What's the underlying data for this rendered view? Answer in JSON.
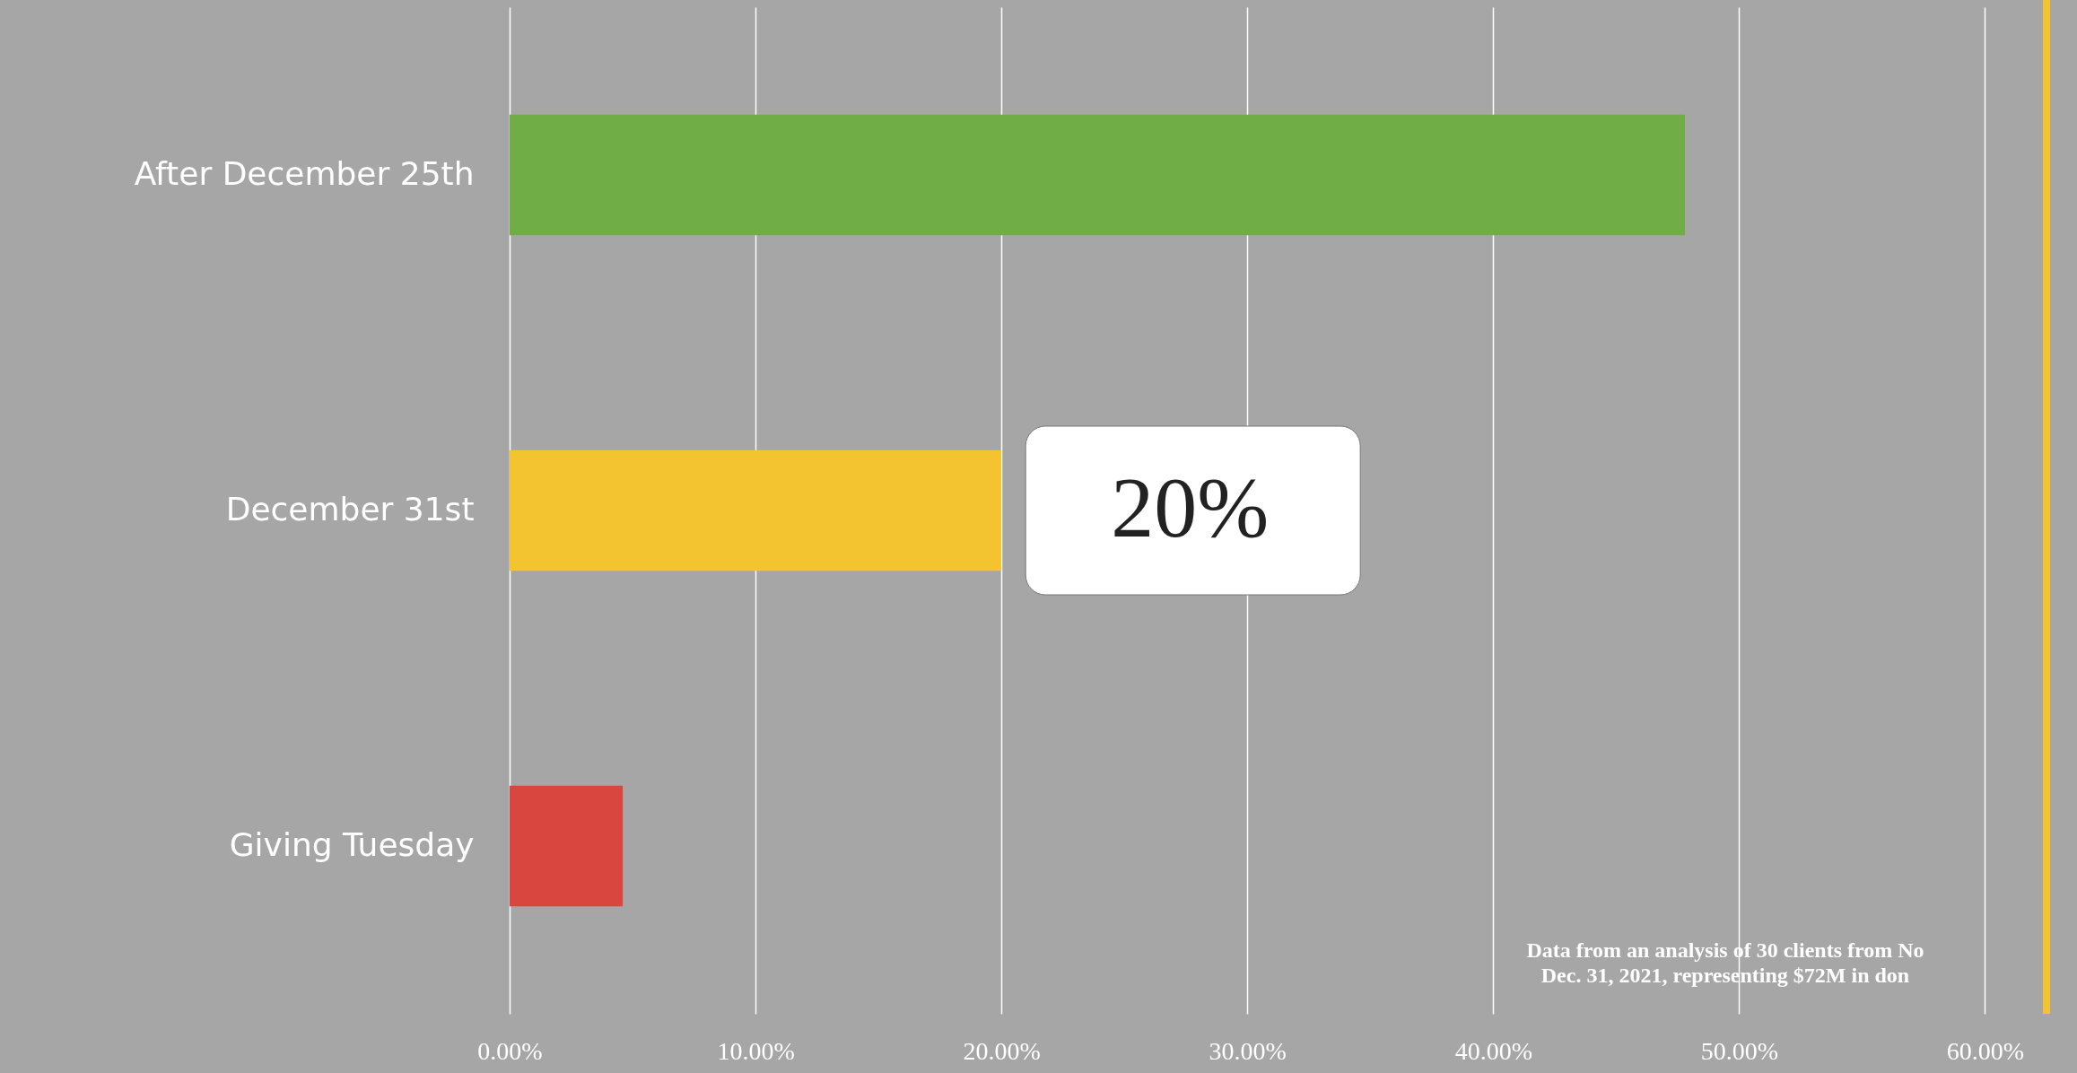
{
  "chart_data": {
    "type": "bar",
    "orientation": "horizontal",
    "categories": [
      "After December 25th",
      "December 31st",
      "Giving Tuesday"
    ],
    "values": [
      47.8,
      20,
      4.6
    ],
    "colors": [
      "#70ad47",
      "#f4c430",
      "#d9463f"
    ],
    "value_labels": [
      null,
      "20%",
      null
    ],
    "xlim": [
      0,
      62.5
    ],
    "xticks": [
      {
        "value": 0,
        "label": "0.00%"
      },
      {
        "value": 10,
        "label": "10.00%"
      },
      {
        "value": 20,
        "label": "20.00%"
      },
      {
        "value": 30,
        "label": "30.00%"
      },
      {
        "value": 40,
        "label": "40.00%"
      },
      {
        "value": 50,
        "label": "50.00%"
      },
      {
        "value": 60,
        "label": "60.00%"
      }
    ],
    "grid": "x",
    "annotations": [
      "Data from an analysis of 30 clients from No\nDec. 31, 2021, representing $72M in don"
    ]
  }
}
